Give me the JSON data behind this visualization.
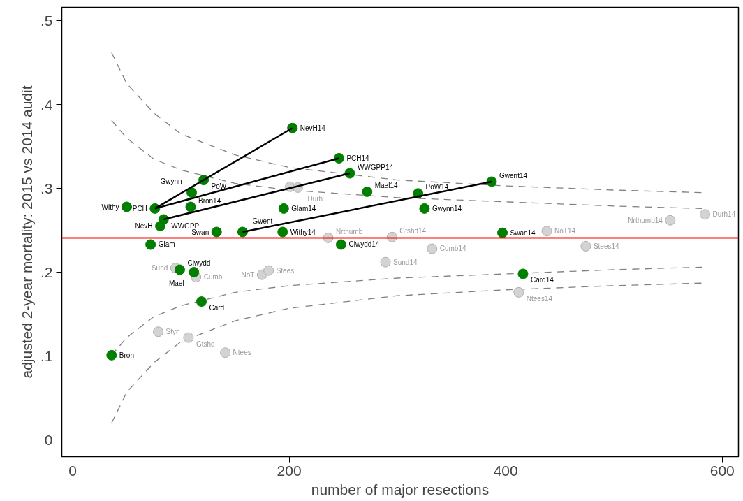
{
  "chart_data": {
    "type": "scatter",
    "xlabel": "number of major resections",
    "ylabel": "adjusted 2-year mortality: 2015 vs 2014 audit",
    "xlim": [
      -10,
      615
    ],
    "ylim": [
      -0.02,
      0.516
    ],
    "xticks": [
      0,
      200,
      400,
      600
    ],
    "yticks": [
      0,
      {
        "value": 0.1,
        "label": ".1"
      },
      {
        "value": 0.2,
        "label": ".2"
      },
      {
        "value": 0.3,
        "label": ".3"
      },
      {
        "value": 0.4,
        "label": ".4"
      },
      {
        "value": 0.5,
        "label": ".5"
      }
    ],
    "grid": false,
    "marker": "circle",
    "ref_lines": [
      {
        "axis": "y",
        "value": 0.241,
        "color": "#ff0000"
      }
    ],
    "series": [
      {
        "type": "line",
        "line_style": "dashed",
        "marker": "none",
        "color": "#808080",
        "x": [
          36,
          50,
          75,
          100,
          150,
          200,
          300,
          400,
          500,
          582
        ],
        "values": [
          0.462,
          0.425,
          0.39,
          0.365,
          0.34,
          0.325,
          0.31,
          0.303,
          0.298,
          0.295
        ]
      },
      {
        "type": "line",
        "line_style": "dashed",
        "marker": "none",
        "color": "#808080",
        "x": [
          36,
          50,
          75,
          100,
          150,
          200,
          300,
          400,
          500,
          582
        ],
        "values": [
          0.381,
          0.36,
          0.335,
          0.322,
          0.306,
          0.298,
          0.289,
          0.284,
          0.279,
          0.276
        ]
      },
      {
        "type": "line",
        "line_style": "dashed",
        "marker": "none",
        "color": "#808080",
        "x": [
          36,
          50,
          75,
          100,
          150,
          200,
          300,
          400,
          500,
          582
        ],
        "values": [
          0.101,
          0.122,
          0.147,
          0.16,
          0.176,
          0.184,
          0.193,
          0.198,
          0.203,
          0.206
        ]
      },
      {
        "type": "line",
        "line_style": "dashed",
        "marker": "none",
        "color": "#808080",
        "x": [
          36,
          50,
          75,
          100,
          150,
          200,
          300,
          400,
          500,
          582
        ],
        "values": [
          0.02,
          0.057,
          0.092,
          0.117,
          0.142,
          0.157,
          0.172,
          0.179,
          0.184,
          0.187
        ]
      },
      {
        "color": "#d3d3d3",
        "x": [
          236,
          295,
          332,
          289,
          438,
          474,
          552,
          584,
          412,
          201,
          208,
          114,
          175,
          181,
          79,
          107,
          141,
          95
        ],
        "values": [
          0.241,
          0.242,
          0.228,
          0.212,
          0.249,
          0.231,
          0.262,
          0.269,
          0.176,
          0.302,
          0.301,
          0.194,
          0.197,
          0.202,
          0.129,
          0.122,
          0.104,
          0.205
        ]
      },
      {
        "color": "#007f00",
        "x": [
          203,
          246,
          256,
          387,
          272,
          319,
          195,
          325,
          194,
          248,
          397,
          416,
          121,
          110,
          109,
          50,
          76,
          84,
          81,
          133,
          157,
          72,
          99,
          112,
          119,
          36
        ],
        "values": [
          0.372,
          0.336,
          0.318,
          0.308,
          0.296,
          0.294,
          0.276,
          0.276,
          0.248,
          0.233,
          0.247,
          0.198,
          0.31,
          0.295,
          0.278,
          0.278,
          0.276,
          0.263,
          0.255,
          0.248,
          0.248,
          0.233,
          0.203,
          0.2,
          0.165,
          0.101
        ]
      },
      {
        "type": "line",
        "line_style": "solid",
        "marker": "none",
        "color": "#000000",
        "x": [
          203,
          76
        ],
        "values": [
          0.372,
          0.276
        ]
      },
      {
        "type": "line",
        "line_style": "solid",
        "marker": "none",
        "color": "#000000",
        "x": [
          246,
          76
        ],
        "values": [
          0.336,
          0.276
        ]
      },
      {
        "type": "line",
        "line_style": "solid",
        "marker": "none",
        "color": "#000000",
        "x": [
          256,
          84
        ],
        "values": [
          0.318,
          0.263
        ]
      },
      {
        "type": "line",
        "line_style": "solid",
        "marker": "none",
        "color": "#000000",
        "x": [
          387,
          157
        ],
        "values": [
          0.308,
          0.248
        ]
      }
    ],
    "annotations": [
      {
        "text": "Nrthumb",
        "x": 236,
        "y": 0.241
      },
      {
        "text": "Gtshd14",
        "x": 295,
        "y": 0.242
      },
      {
        "text": "Cumb14",
        "x": 332,
        "y": 0.228
      },
      {
        "text": "Sund14",
        "x": 289,
        "y": 0.212
      },
      {
        "text": "NoT14",
        "x": 438,
        "y": 0.249
      },
      {
        "text": "Stees14",
        "x": 474,
        "y": 0.231
      },
      {
        "text": "Nrthumb14",
        "x": 552,
        "y": 0.262
      },
      {
        "text": "Durh14",
        "x": 584,
        "y": 0.269
      },
      {
        "text": "Ntees14",
        "x": 412,
        "y": 0.176
      },
      {
        "text": "Durh",
        "x": 208,
        "y": 0.301
      },
      {
        "text": "Cumb",
        "x": 114,
        "y": 0.194
      },
      {
        "text": "NoT",
        "x": 175,
        "y": 0.197
      },
      {
        "text": "Stees",
        "x": 181,
        "y": 0.202
      },
      {
        "text": "Styn",
        "x": 79,
        "y": 0.129
      },
      {
        "text": "Gtshd",
        "x": 107,
        "y": 0.122
      },
      {
        "text": "Ntees",
        "x": 141,
        "y": 0.104
      },
      {
        "text": "Sund",
        "x": 95,
        "y": 0.205
      },
      {
        "text": "NevH14",
        "x": 203,
        "y": 0.372
      },
      {
        "text": "PCH14",
        "x": 246,
        "y": 0.336
      },
      {
        "text": "WWGPP14",
        "x": 256,
        "y": 0.318
      },
      {
        "text": "Gwent14",
        "x": 387,
        "y": 0.308
      },
      {
        "text": "Mael14",
        "x": 272,
        "y": 0.296
      },
      {
        "text": "PoW14",
        "x": 319,
        "y": 0.294
      },
      {
        "text": "Glam14",
        "x": 195,
        "y": 0.276
      },
      {
        "text": "Gwynn14",
        "x": 325,
        "y": 0.276
      },
      {
        "text": "Withy14",
        "x": 194,
        "y": 0.248
      },
      {
        "text": "Clwydd14",
        "x": 248,
        "y": 0.233
      },
      {
        "text": "Swan14",
        "x": 397,
        "y": 0.247
      },
      {
        "text": "Card14",
        "x": 416,
        "y": 0.198
      },
      {
        "text": "PoW",
        "x": 121,
        "y": 0.31
      },
      {
        "text": "Gwynn",
        "x": 110,
        "y": 0.295
      },
      {
        "text": "Bron14",
        "x": 109,
        "y": 0.278
      },
      {
        "text": "Withy",
        "x": 50,
        "y": 0.278
      },
      {
        "text": "PCH",
        "x": 76,
        "y": 0.276
      },
      {
        "text": "WWGPP",
        "x": 84,
        "y": 0.263
      },
      {
        "text": "NevH",
        "x": 81,
        "y": 0.255
      },
      {
        "text": "Swan",
        "x": 133,
        "y": 0.248
      },
      {
        "text": "Gwent",
        "x": 157,
        "y": 0.248
      },
      {
        "text": "Glam",
        "x": 72,
        "y": 0.233
      },
      {
        "text": "Clwydd",
        "x": 99,
        "y": 0.203
      },
      {
        "text": "Mael",
        "x": 112,
        "y": 0.2
      },
      {
        "text": "Card",
        "x": 119,
        "y": 0.165
      },
      {
        "text": "Bron",
        "x": 36,
        "y": 0.101
      }
    ]
  }
}
